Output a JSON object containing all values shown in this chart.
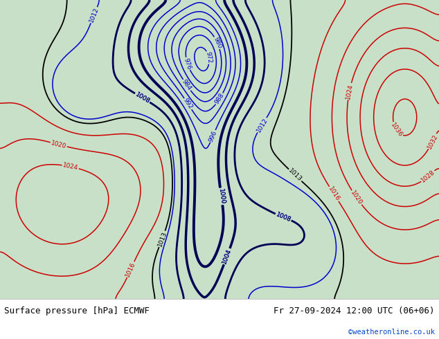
{
  "title_left": "Surface pressure [hPa] ECMWF",
  "title_right": "Fr 27-09-2024 12:00 UTC (06+06)",
  "credit": "©weatheronline.co.uk",
  "bg_color": "#c8dfc8",
  "bottom_bar_color": "#ffffff",
  "text_color_black": "#000000",
  "text_color_blue": "#0044cc",
  "contour_color_red": "#cc0000",
  "contour_color_blue": "#0000cc",
  "contour_color_black": "#000000",
  "figsize": [
    6.34,
    4.9
  ],
  "dpi": 100
}
